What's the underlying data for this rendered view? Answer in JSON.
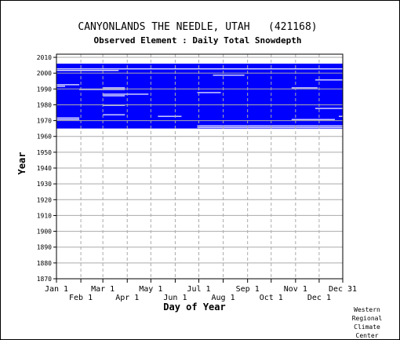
{
  "chart_data": {
    "type": "heatmap",
    "title": "CANYONLANDS THE NEEDLE, UTAH   (421168)",
    "subtitle": "Observed Element : Daily Total Snowdepth",
    "xlabel": "Day of Year",
    "ylabel": "Year",
    "x_ticks_row1": [
      "Jan 1",
      "Mar 1",
      "May 1",
      "Jul 1",
      "Sep 1",
      "Nov 1",
      "Dec 31"
    ],
    "x_ticks_row2": [
      "Feb 1",
      "Apr 1",
      "Jun 1",
      "Aug 1",
      "Oct 1",
      "Dec 1"
    ],
    "y_ticks": [
      1870,
      1880,
      1890,
      1900,
      1910,
      1920,
      1930,
      1940,
      1950,
      1960,
      1970,
      1980,
      1990,
      2000,
      2010
    ],
    "ylim": [
      1870,
      2012
    ],
    "xlim_day_of_year": [
      1,
      365
    ],
    "grid": true,
    "record_start_year": 1965,
    "record_end_year": 2005,
    "observed_color": "#0000ff",
    "missing_color": "#ffffff",
    "missing_gaps": [
      {
        "year": 2002,
        "from_day": 1,
        "to_day": 365
      },
      {
        "year": 2001,
        "from_day": 1,
        "to_day": 80
      },
      {
        "year": 1998,
        "from_day": 200,
        "to_day": 240
      },
      {
        "year": 1992,
        "from_day": 1,
        "to_day": 30
      },
      {
        "year": 1991,
        "from_day": 1,
        "to_day": 12
      },
      {
        "year": 1990,
        "from_day": 60,
        "to_day": 88
      },
      {
        "year": 1989,
        "from_day": 30,
        "to_day": 88
      },
      {
        "year": 1986,
        "from_day": 60,
        "to_day": 118
      },
      {
        "year": 1985,
        "from_day": 60,
        "to_day": 88
      },
      {
        "year": 1979,
        "from_day": 60,
        "to_day": 88
      },
      {
        "year": 1973,
        "from_day": 60,
        "to_day": 88
      },
      {
        "year": 1971,
        "from_day": 1,
        "to_day": 30
      },
      {
        "year": 1970,
        "from_day": 1,
        "to_day": 30
      },
      {
        "year": 1995,
        "from_day": 330,
        "to_day": 365
      },
      {
        "year": 1990,
        "from_day": 300,
        "to_day": 333
      },
      {
        "year": 1987,
        "from_day": 180,
        "to_day": 210
      },
      {
        "year": 1977,
        "from_day": 330,
        "to_day": 365
      },
      {
        "year": 1972,
        "from_day": 130,
        "to_day": 160
      },
      {
        "year": 1972,
        "from_day": 360,
        "to_day": 365
      },
      {
        "year": 1970,
        "from_day": 300,
        "to_day": 355
      },
      {
        "year": 1966,
        "from_day": 180,
        "to_day": 365
      },
      {
        "year": 1965,
        "from_day": 180,
        "to_day": 365
      }
    ]
  },
  "credit": {
    "line1": "Western",
    "line2": "Regional",
    "line3": "Climate",
    "line4": "Center"
  }
}
